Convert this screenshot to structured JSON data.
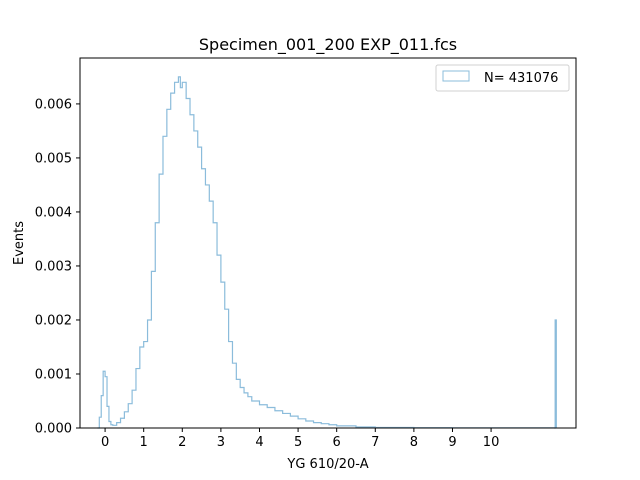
{
  "chart_data": {
    "type": "area",
    "title": "Specimen_001_200 EXP_011.fcs",
    "xlabel": "YG 610/20-A",
    "ylabel": "Events",
    "xlim": [
      -0.65,
      12.2
    ],
    "ylim": [
      0,
      0.00685
    ],
    "xticks": [
      0,
      1,
      2,
      3,
      4,
      5,
      6,
      7,
      8,
      9,
      10
    ],
    "xtick_labels": [
      "0",
      "1",
      "2",
      "3",
      "4",
      "5",
      "6",
      "7",
      "8",
      "9",
      "10"
    ],
    "yticks": [
      0,
      0.001,
      0.002,
      0.003,
      0.004,
      0.005,
      0.006
    ],
    "ytick_labels": [
      "0.000",
      "0.001",
      "0.002",
      "0.003",
      "0.004",
      "0.005",
      "0.006"
    ],
    "grid": false,
    "legend_position": "top-right",
    "series": [
      {
        "name": "N= 431076",
        "color": "#8bbcdb",
        "style": "step-outline",
        "x": [
          -0.2,
          -0.15,
          -0.1,
          -0.05,
          0.0,
          0.05,
          0.1,
          0.15,
          0.2,
          0.3,
          0.4,
          0.5,
          0.6,
          0.7,
          0.8,
          0.9,
          1.0,
          1.1,
          1.2,
          1.3,
          1.4,
          1.5,
          1.6,
          1.7,
          1.8,
          1.9,
          1.95,
          2.0,
          2.1,
          2.2,
          2.3,
          2.4,
          2.5,
          2.6,
          2.7,
          2.8,
          2.9,
          3.0,
          3.1,
          3.2,
          3.3,
          3.4,
          3.5,
          3.6,
          3.7,
          3.8,
          4.0,
          4.2,
          4.4,
          4.6,
          4.8,
          5.0,
          5.2,
          5.4,
          5.6,
          5.8,
          6.0,
          6.5,
          7.0,
          7.5,
          8.0,
          9.0,
          10.0,
          11.0,
          11.5,
          11.65,
          11.66,
          11.68,
          11.69
        ],
        "y": [
          0.0,
          0.0002,
          0.0006,
          0.00105,
          0.00095,
          0.0004,
          0.00012,
          6e-05,
          5e-05,
          0.0001,
          0.00018,
          0.0003,
          0.00045,
          0.0007,
          0.0011,
          0.0015,
          0.0016,
          0.002,
          0.0029,
          0.0038,
          0.0047,
          0.0054,
          0.0059,
          0.0062,
          0.0064,
          0.0065,
          0.0063,
          0.0064,
          0.0061,
          0.0058,
          0.0055,
          0.0052,
          0.0048,
          0.0045,
          0.0042,
          0.0038,
          0.0032,
          0.0027,
          0.0022,
          0.0016,
          0.0012,
          0.0009,
          0.00075,
          0.00065,
          0.00058,
          0.0005,
          0.00043,
          0.00038,
          0.00032,
          0.00027,
          0.00022,
          0.00017,
          0.00013,
          0.0001,
          8e-05,
          6e-05,
          4e-05,
          2e-05,
          1e-05,
          1e-05,
          5e-06,
          3e-06,
          2e-06,
          2e-06,
          2e-06,
          0.0,
          0.002,
          0.002,
          0.0
        ]
      }
    ]
  }
}
